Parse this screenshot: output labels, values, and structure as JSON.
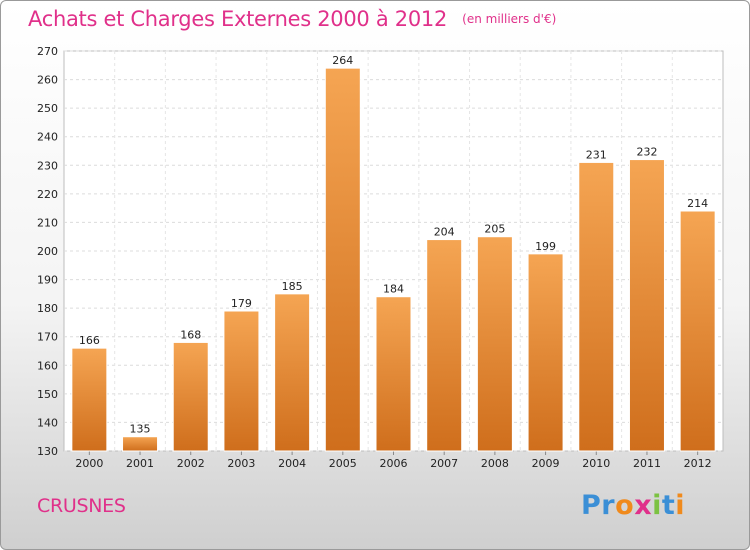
{
  "chart_data": {
    "type": "bar",
    "title": "Achats et Charges Externes 2000 à 2012",
    "subtitle": "(en milliers d'€)",
    "categories": [
      "2000",
      "2001",
      "2002",
      "2003",
      "2004",
      "2005",
      "2006",
      "2007",
      "2008",
      "2009",
      "2010",
      "2011",
      "2012"
    ],
    "values": [
      166,
      135,
      168,
      179,
      185,
      264,
      184,
      204,
      205,
      199,
      231,
      232,
      214
    ],
    "ylim": [
      130,
      270
    ],
    "yticks": [
      130,
      140,
      150,
      160,
      170,
      180,
      190,
      200,
      210,
      220,
      230,
      240,
      250,
      260,
      270
    ],
    "grid": true,
    "bar_color_top": "#f5a553",
    "bar_color_bottom": "#cf6e1c"
  },
  "footer": {
    "commune": "CRUSNES",
    "logo_letters": [
      {
        "ch": "P",
        "color": "#3b8fd6"
      },
      {
        "ch": "r",
        "color": "#3b8fd6"
      },
      {
        "ch": "o",
        "color": "#f08a1c"
      },
      {
        "ch": "x",
        "color": "#e0308a"
      },
      {
        "ch": "i",
        "color": "#7cc242"
      },
      {
        "ch": "t",
        "color": "#3b8fd6"
      },
      {
        "ch": "i",
        "color": "#f08a1c"
      }
    ]
  }
}
